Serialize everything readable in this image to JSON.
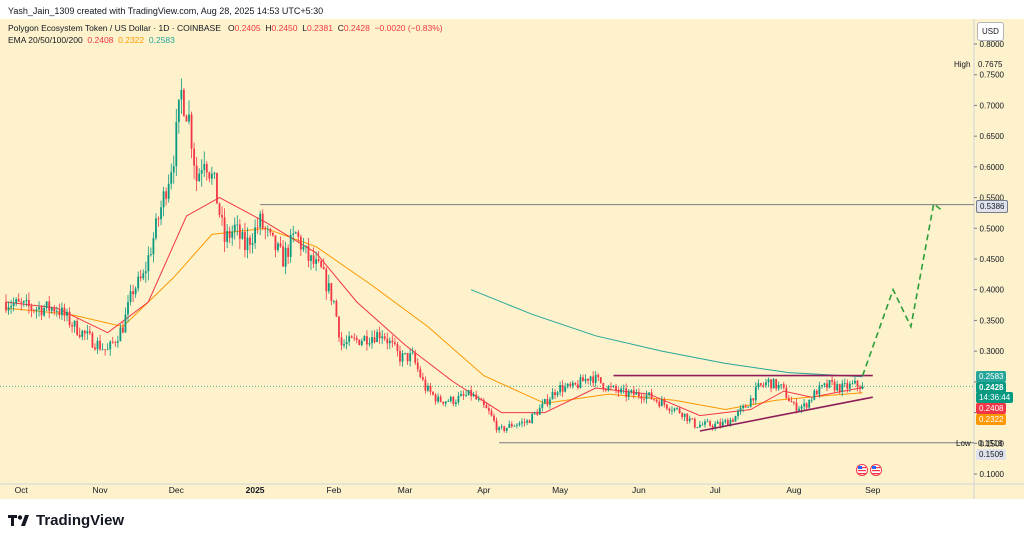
{
  "credit": "Yash_Jain_1309 created with TradingView.com, Aug 28, 2025 14:53 UTC+5:30",
  "legend": {
    "symbol": "Polygon Ecosystem Token / US Dollar · 1D · COINBASE",
    "open_label": "O",
    "open": "0.2405",
    "high_label": "H",
    "high": "0.2450",
    "low_label": "L",
    "low": "0.2381",
    "close_label": "C",
    "close": "0.2428",
    "change": "−0.0020 (−0.83%)",
    "ema_label": "EMA 20/50/100/200",
    "ema_20": "0.2408",
    "ema_50": "0.2322",
    "ema_200": "0.2583"
  },
  "currency": "USD",
  "price_tags": {
    "resistance": "0.5386",
    "ema_200": "0.2583",
    "last": "0.2428",
    "countdown": "14:36:44",
    "ema_20": "0.2408",
    "ema_50": "0.2322",
    "low": "0.1509"
  },
  "side_labels": {
    "high_label": "High",
    "high_value": "0.7675",
    "low_label": "Low",
    "low_value": "0.1518"
  },
  "footer": {
    "brand": "TradingView",
    "logo_icon": "tradingview-logo-icon"
  },
  "colors": {
    "background": "#fdf2cb",
    "up": "#089981",
    "down": "#f23645",
    "ema20": "#f23645",
    "ema50": "#ff9800",
    "ema200": "#26a69a",
    "trendline": "#8e1d5a",
    "projection": "#2e9e3a",
    "horizontal": "#787b86"
  },
  "chart_data": {
    "type": "candlestick",
    "ylim": [
      0.1,
      0.8
    ],
    "y_ticks": [
      0.8,
      0.75,
      0.7,
      0.65,
      0.6,
      0.55,
      0.5,
      0.45,
      0.4,
      0.35,
      0.3,
      0.25,
      0.2,
      0.15,
      0.1
    ],
    "x_ticks": [
      "Oct",
      "Nov",
      "Dec",
      "2025",
      "Feb",
      "Mar",
      "Apr",
      "May",
      "Jun",
      "Jul",
      "Aug",
      "Sep"
    ],
    "x_tick_dates": [
      "2024-10-01",
      "2024-11-01",
      "2024-12-01",
      "2025-01-01",
      "2025-02-01",
      "2025-03-01",
      "2025-04-01",
      "2025-05-01",
      "2025-06-01",
      "2025-07-01",
      "2025-08-01",
      "2025-09-01"
    ],
    "price_path": [
      [
        "2024-09-25",
        0.38
      ],
      [
        "2024-10-05",
        0.37
      ],
      [
        "2024-10-15",
        0.37
      ],
      [
        "2024-10-22",
        0.34
      ],
      [
        "2024-10-28",
        0.32
      ],
      [
        "2024-11-04",
        0.3
      ],
      [
        "2024-11-10",
        0.34
      ],
      [
        "2024-11-14",
        0.4
      ],
      [
        "2024-11-18",
        0.42
      ],
      [
        "2024-11-23",
        0.5
      ],
      [
        "2024-11-26",
        0.55
      ],
      [
        "2024-11-30",
        0.62
      ],
      [
        "2024-12-03",
        0.72
      ],
      [
        "2024-12-06",
        0.68
      ],
      [
        "2024-12-09",
        0.58
      ],
      [
        "2024-12-12",
        0.62
      ],
      [
        "2024-12-16",
        0.57
      ],
      [
        "2024-12-20",
        0.48
      ],
      [
        "2024-12-24",
        0.5
      ],
      [
        "2024-12-28",
        0.47
      ],
      [
        "2025-01-03",
        0.51
      ],
      [
        "2025-01-07",
        0.48
      ],
      [
        "2025-01-12",
        0.45
      ],
      [
        "2025-01-17",
        0.49
      ],
      [
        "2025-01-22",
        0.45
      ],
      [
        "2025-01-27",
        0.43
      ],
      [
        "2025-02-01",
        0.38
      ],
      [
        "2025-02-04",
        0.31
      ],
      [
        "2025-02-12",
        0.32
      ],
      [
        "2025-02-20",
        0.33
      ],
      [
        "2025-02-27",
        0.29
      ],
      [
        "2025-03-04",
        0.29
      ],
      [
        "2025-03-09",
        0.24
      ],
      [
        "2025-03-14",
        0.22
      ],
      [
        "2025-03-20",
        0.22
      ],
      [
        "2025-03-27",
        0.23
      ],
      [
        "2025-04-03",
        0.2
      ],
      [
        "2025-04-07",
        0.17
      ],
      [
        "2025-04-12",
        0.18
      ],
      [
        "2025-04-18",
        0.185
      ],
      [
        "2025-04-24",
        0.21
      ],
      [
        "2025-04-30",
        0.24
      ],
      [
        "2025-05-06",
        0.24
      ],
      [
        "2025-05-13",
        0.26
      ],
      [
        "2025-05-20",
        0.24
      ],
      [
        "2025-05-27",
        0.23
      ],
      [
        "2025-06-03",
        0.23
      ],
      [
        "2025-06-08",
        0.22
      ],
      [
        "2025-06-13",
        0.21
      ],
      [
        "2025-06-18",
        0.2
      ],
      [
        "2025-06-23",
        0.18
      ],
      [
        "2025-06-28",
        0.18
      ],
      [
        "2025-07-03",
        0.18
      ],
      [
        "2025-07-08",
        0.19
      ],
      [
        "2025-07-13",
        0.21
      ],
      [
        "2025-07-18",
        0.24
      ],
      [
        "2025-07-22",
        0.25
      ],
      [
        "2025-07-27",
        0.24
      ],
      [
        "2025-08-01",
        0.21
      ],
      [
        "2025-08-05",
        0.21
      ],
      [
        "2025-08-10",
        0.235
      ],
      [
        "2025-08-15",
        0.245
      ],
      [
        "2025-08-20",
        0.24
      ],
      [
        "2025-08-25",
        0.245
      ],
      [
        "2025-08-28",
        0.2428
      ]
    ],
    "ema20_path": [
      [
        "2024-09-25",
        0.38
      ],
      [
        "2024-10-15",
        0.37
      ],
      [
        "2024-11-04",
        0.33
      ],
      [
        "2024-11-20",
        0.38
      ],
      [
        "2024-12-05",
        0.52
      ],
      [
        "2024-12-18",
        0.55
      ],
      [
        "2025-01-05",
        0.51
      ],
      [
        "2025-01-25",
        0.46
      ],
      [
        "2025-02-10",
        0.38
      ],
      [
        "2025-03-01",
        0.31
      ],
      [
        "2025-03-20",
        0.25
      ],
      [
        "2025-04-08",
        0.2
      ],
      [
        "2025-04-25",
        0.2
      ],
      [
        "2025-05-15",
        0.24
      ],
      [
        "2025-06-05",
        0.23
      ],
      [
        "2025-06-25",
        0.195
      ],
      [
        "2025-07-15",
        0.205
      ],
      [
        "2025-07-28",
        0.235
      ],
      [
        "2025-08-08",
        0.225
      ],
      [
        "2025-08-28",
        0.2408
      ]
    ],
    "ema50_path": [
      [
        "2024-09-25",
        0.37
      ],
      [
        "2024-10-20",
        0.36
      ],
      [
        "2024-11-10",
        0.34
      ],
      [
        "2024-11-30",
        0.42
      ],
      [
        "2024-12-15",
        0.49
      ],
      [
        "2025-01-05",
        0.5
      ],
      [
        "2025-01-25",
        0.47
      ],
      [
        "2025-02-15",
        0.41
      ],
      [
        "2025-03-10",
        0.34
      ],
      [
        "2025-04-01",
        0.26
      ],
      [
        "2025-04-25",
        0.215
      ],
      [
        "2025-05-20",
        0.23
      ],
      [
        "2025-06-15",
        0.22
      ],
      [
        "2025-07-05",
        0.205
      ],
      [
        "2025-07-25",
        0.22
      ],
      [
        "2025-08-15",
        0.228
      ],
      [
        "2025-08-28",
        0.2322
      ]
    ],
    "ema200_path": [
      [
        "2025-03-27",
        0.4
      ],
      [
        "2025-04-20",
        0.36
      ],
      [
        "2025-05-15",
        0.325
      ],
      [
        "2025-06-10",
        0.3
      ],
      [
        "2025-07-05",
        0.28
      ],
      [
        "2025-07-30",
        0.265
      ],
      [
        "2025-08-28",
        0.2583
      ]
    ],
    "annotations": [
      {
        "type": "horizontal",
        "value": 0.5386,
        "from": "2025-01-03"
      },
      {
        "type": "horizontal",
        "value": 0.1509,
        "from": "2025-04-07"
      },
      {
        "type": "trendline",
        "from": [
          "2025-05-22",
          0.2603
        ],
        "to": [
          "2025-09-01",
          0.2603
        ]
      },
      {
        "type": "trendline",
        "from": [
          "2025-06-25",
          0.17
        ],
        "to": [
          "2025-09-01",
          0.225
        ]
      },
      {
        "type": "projection",
        "points": [
          [
            "2025-08-28",
            0.26
          ],
          [
            "2025-09-09",
            0.4
          ],
          [
            "2025-09-16",
            0.34
          ],
          [
            "2025-09-25",
            0.54
          ],
          [
            "2025-09-28",
            0.53
          ]
        ]
      }
    ]
  }
}
